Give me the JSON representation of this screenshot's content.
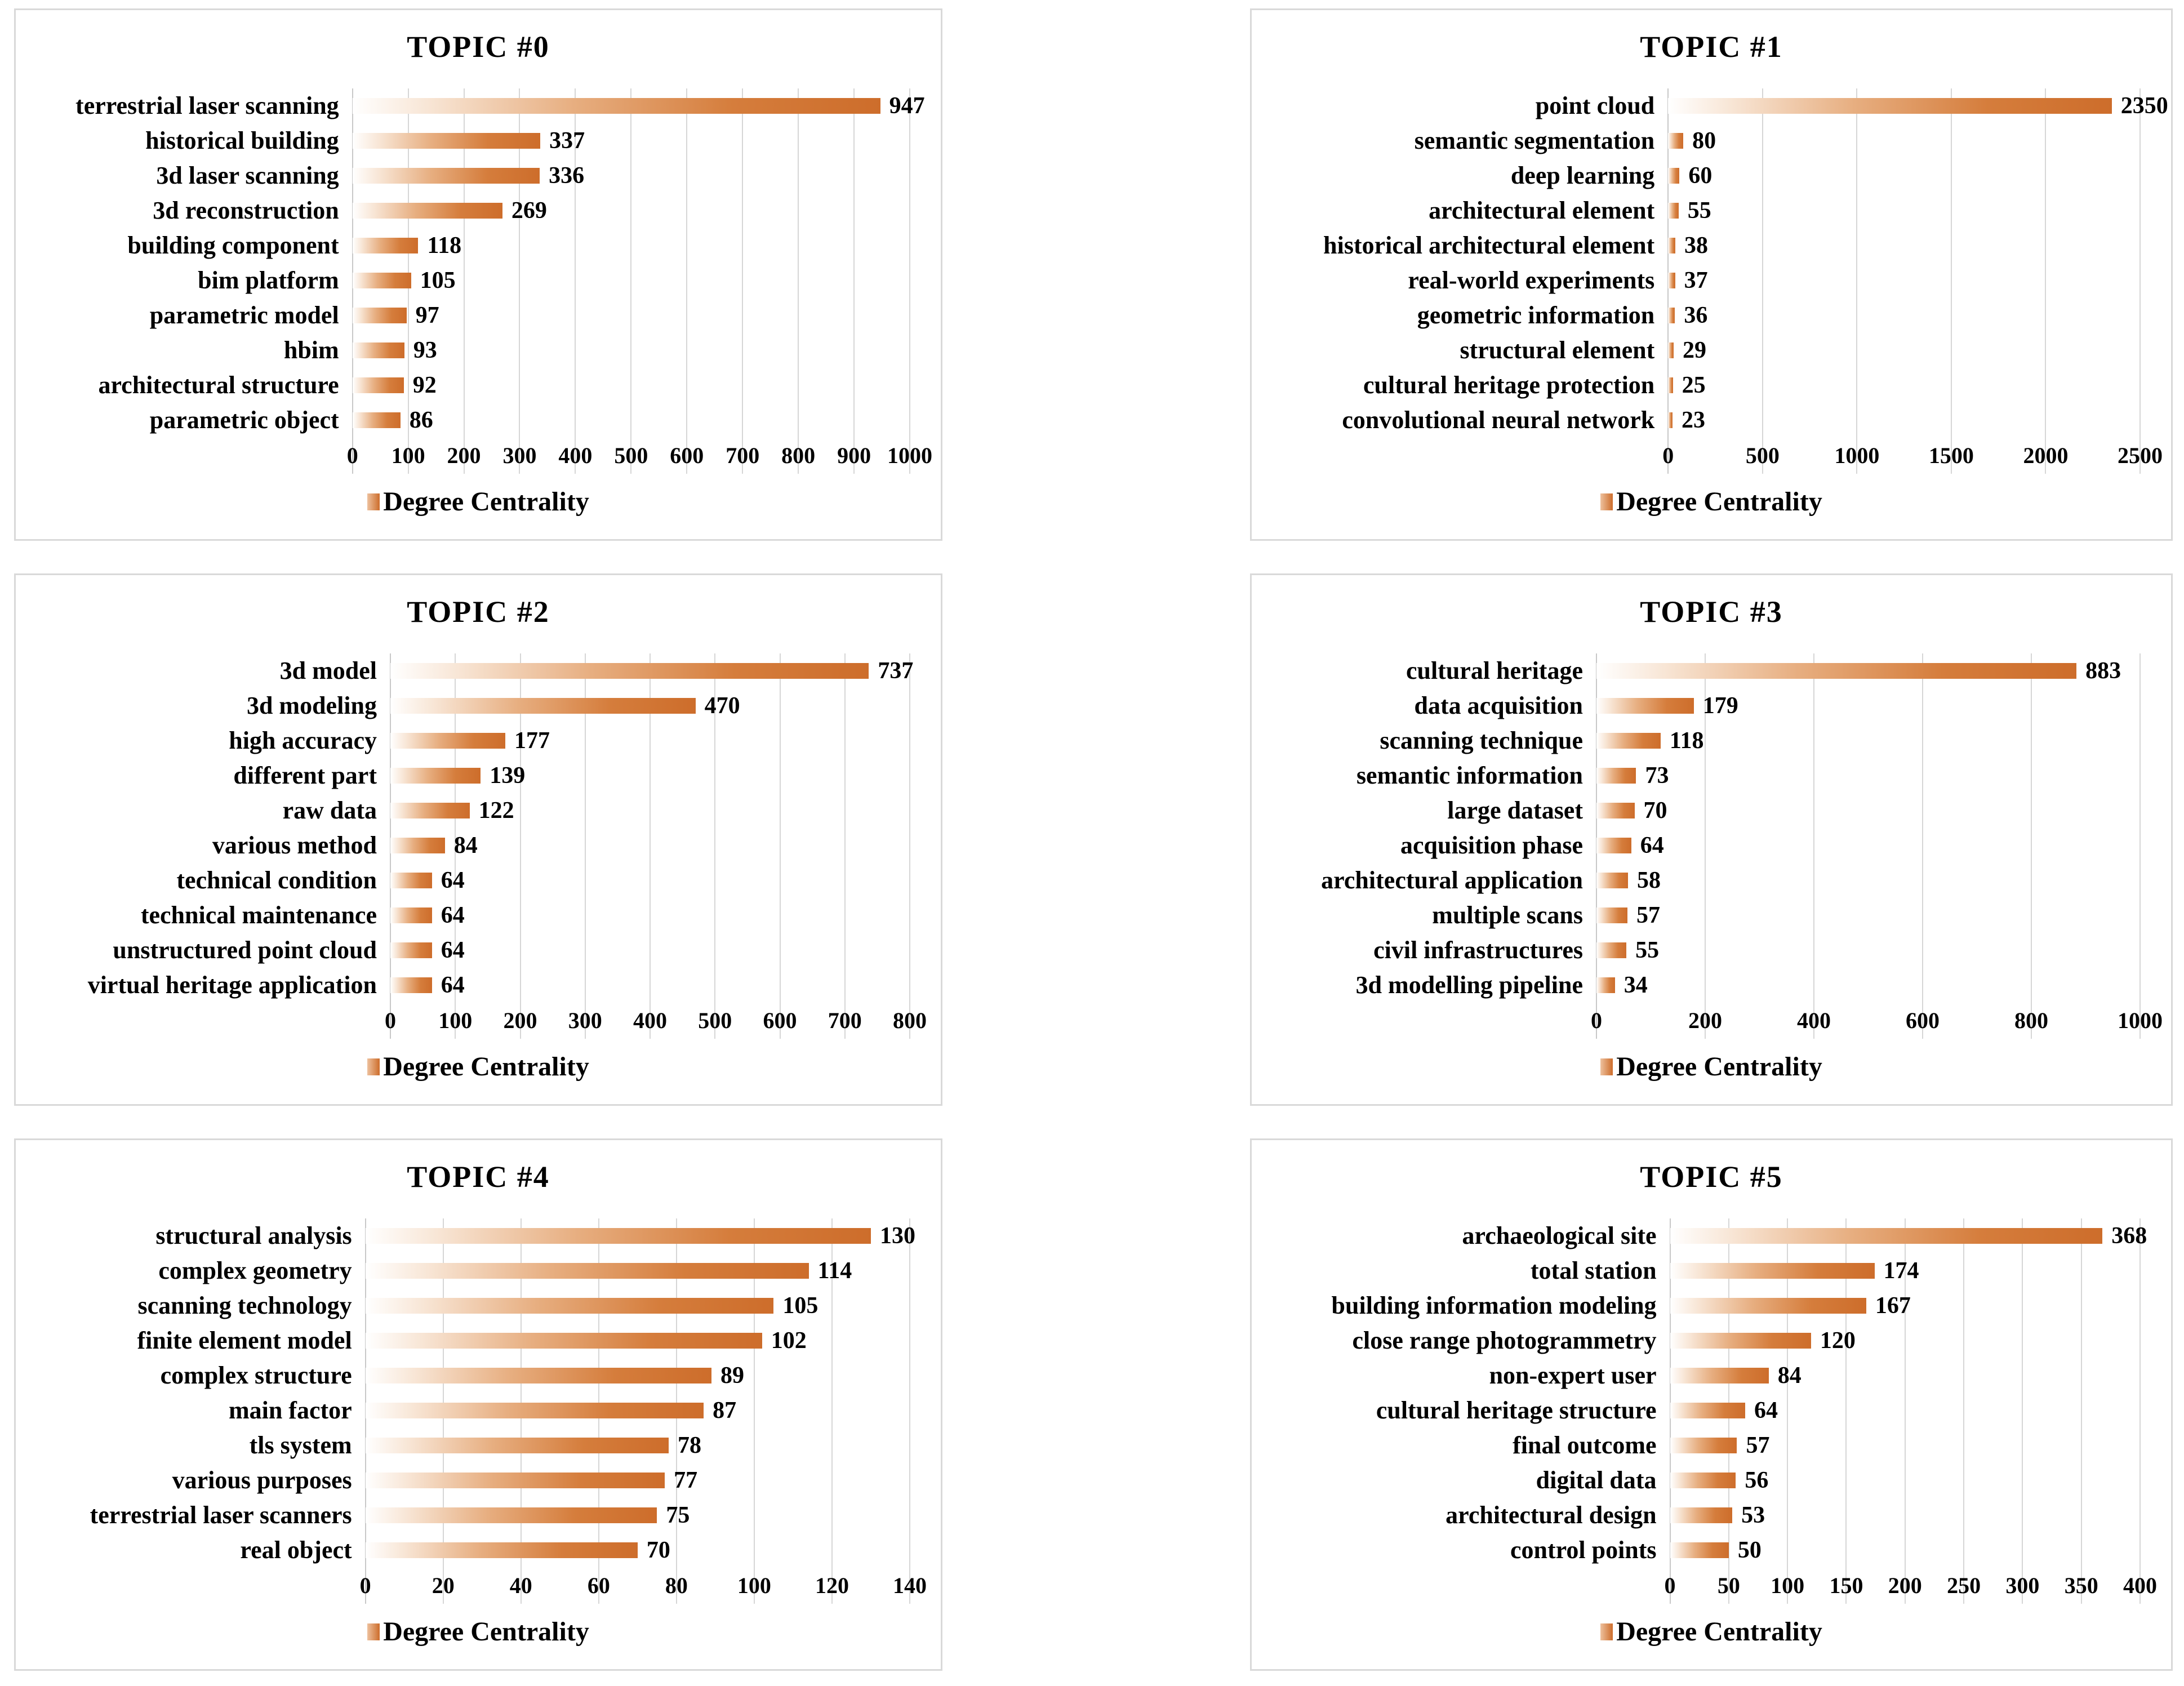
{
  "legend_label": "Degree Centrality",
  "colors": {
    "bar_orange": "#CD6D2B",
    "bar_gradient_light": "#FFFFFF",
    "gridline": "#D6D6D6",
    "panel_border": "#D9D9D9",
    "text": "#000000",
    "background": "#FFFFFF"
  },
  "chart_data": [
    {
      "type": "bar",
      "orientation": "horizontal",
      "title": "TOPIC #0",
      "legend": "Degree Centrality",
      "grid": true,
      "xlim": [
        0,
        1000
      ],
      "xtick_step": 100,
      "categories": [
        "terrestrial laser scanning",
        "historical building",
        "3d laser scanning",
        "3d reconstruction",
        "building component",
        "bim platform",
        "parametric model",
        "hbim",
        "architectural structure",
        "parametric object"
      ],
      "values": [
        947,
        337,
        336,
        269,
        118,
        105,
        97,
        93,
        92,
        86
      ]
    },
    {
      "type": "bar",
      "orientation": "horizontal",
      "title": "TOPIC #1",
      "legend": "Degree Centrality",
      "grid": true,
      "xlim": [
        0,
        2500
      ],
      "xtick_step": 500,
      "categories": [
        "point cloud",
        "semantic segmentation",
        "deep learning",
        "architectural element",
        "historical architectural element",
        "real-world experiments",
        "geometric information",
        "structural element",
        "cultural heritage protection",
        "convolutional neural network"
      ],
      "values": [
        2350,
        80,
        60,
        55,
        38,
        37,
        36,
        29,
        25,
        23
      ]
    },
    {
      "type": "bar",
      "orientation": "horizontal",
      "title": "TOPIC #2",
      "legend": "Degree Centrality",
      "grid": true,
      "xlim": [
        0,
        800
      ],
      "xtick_step": 100,
      "categories": [
        "3d model",
        "3d modeling",
        "high accuracy",
        "different part",
        "raw data",
        "various method",
        "technical condition",
        "technical maintenance",
        "unstructured point cloud",
        "virtual heritage application"
      ],
      "values": [
        737,
        470,
        177,
        139,
        122,
        84,
        64,
        64,
        64,
        64
      ]
    },
    {
      "type": "bar",
      "orientation": "horizontal",
      "title": "TOPIC #3",
      "legend": "Degree Centrality",
      "grid": true,
      "xlim": [
        0,
        1000
      ],
      "xtick_step": 200,
      "categories": [
        "cultural heritage",
        "data acquisition",
        "scanning technique",
        "semantic information",
        "large dataset",
        "acquisition phase",
        "architectural application",
        "multiple scans",
        "civil infrastructures",
        "3d modelling pipeline"
      ],
      "values": [
        883,
        179,
        118,
        73,
        70,
        64,
        58,
        57,
        55,
        34
      ]
    },
    {
      "type": "bar",
      "orientation": "horizontal",
      "title": "TOPIC #4",
      "legend": "Degree Centrality",
      "grid": true,
      "xlim": [
        0,
        140
      ],
      "xtick_step": 20,
      "categories": [
        "structural analysis",
        "complex geometry",
        "scanning technology",
        "finite element model",
        "complex structure",
        "main factor",
        "tls system",
        "various purposes",
        "terrestrial laser scanners",
        "real object"
      ],
      "values": [
        130,
        114,
        105,
        102,
        89,
        87,
        78,
        77,
        75,
        70
      ]
    },
    {
      "type": "bar",
      "orientation": "horizontal",
      "title": "TOPIC #5",
      "legend": "Degree Centrality",
      "grid": true,
      "xlim": [
        0,
        400
      ],
      "xtick_step": 50,
      "categories": [
        "archaeological site",
        "total station",
        "building information modeling",
        "close range photogrammetry",
        "non-expert user",
        "cultural heritage structure",
        "final outcome",
        "digital data",
        "architectural design",
        "control points"
      ],
      "values": [
        368,
        174,
        167,
        120,
        84,
        64,
        57,
        56,
        53,
        50
      ]
    }
  ]
}
